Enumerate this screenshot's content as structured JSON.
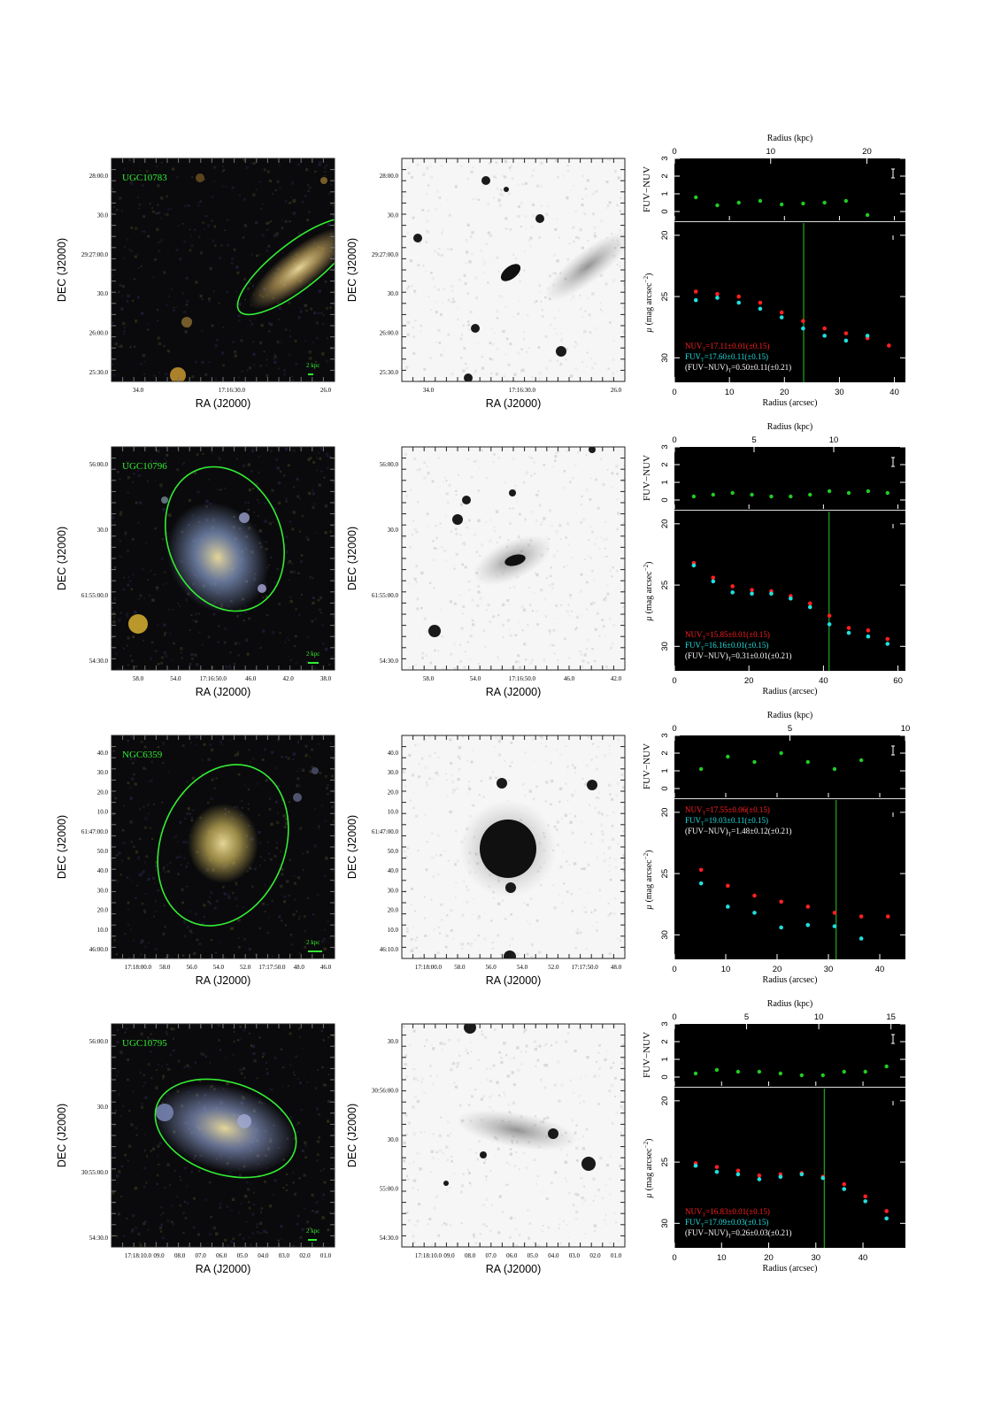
{
  "rows": [
    {
      "name": "UGC10783",
      "color": {
        "ra_ticks": [
          "34.0",
          "17:16:30.0",
          "26.0"
        ],
        "dec_ticks": [
          "28:00.0",
          "30.0",
          "29:27:00.0",
          "30.0",
          "26:00.0",
          "25:30.0"
        ],
        "scale": "2 kpc"
      },
      "gray": {
        "ra_ticks": [
          "34.0",
          "17:16:30.0",
          "26.0"
        ],
        "dec_ticks": [
          "28:00.0",
          "30.0",
          "29:27:00.0",
          "30.0",
          "26:00.0",
          "25:30.0"
        ]
      },
      "profile": {
        "kpc_ticks": [
          "0",
          "10",
          "20"
        ],
        "kpc_max": 24,
        "arcsec_ticks": [
          "0",
          "10",
          "20",
          "30",
          "40"
        ],
        "arcsec_max": 42,
        "color_ticks": [
          "0",
          "1",
          "2",
          "3"
        ],
        "mu_ticks": [
          "20",
          "25",
          "30"
        ],
        "mu_range": [
          19.0,
          32.0
        ],
        "vline": 23.5,
        "legend_pos": "bottom",
        "nuv_label": "NUV",
        "nuv_value": "=17.11±0.01(±0.15)",
        "fuv_label": "FUV",
        "fuv_value": "=17.60±0.11(±0.15)",
        "color_label": "(FUV−NUV)",
        "color_value": "=0.50±0.11(±0.21)",
        "nuv": [
          [
            3.9,
            24.6
          ],
          [
            7.8,
            24.8
          ],
          [
            11.7,
            25.0
          ],
          [
            15.6,
            25.5
          ],
          [
            19.5,
            26.3
          ],
          [
            23.4,
            27.0
          ],
          [
            27.3,
            27.6
          ],
          [
            31.2,
            28.0
          ],
          [
            35.1,
            28.4
          ],
          [
            39.0,
            29.0
          ]
        ],
        "fuv": [
          [
            3.9,
            25.3
          ],
          [
            7.8,
            25.1
          ],
          [
            11.7,
            25.5
          ],
          [
            15.6,
            26.0
          ],
          [
            19.5,
            26.7
          ],
          [
            23.4,
            27.6
          ],
          [
            27.3,
            28.2
          ],
          [
            31.2,
            28.6
          ],
          [
            35.1,
            28.2
          ]
        ],
        "fuv_nuv": [
          [
            3.9,
            0.8
          ],
          [
            7.8,
            0.35
          ],
          [
            11.7,
            0.5
          ],
          [
            15.6,
            0.6
          ],
          [
            19.5,
            0.4
          ],
          [
            23.4,
            0.45
          ],
          [
            27.3,
            0.5
          ],
          [
            31.2,
            0.6
          ],
          [
            35.1,
            -0.2
          ]
        ]
      }
    },
    {
      "name": "UGC10796",
      "color": {
        "ra_ticks": [
          "58.0",
          "54.0",
          "17:16:50.0",
          "46.0",
          "42.0",
          "38.0"
        ],
        "dec_ticks": [
          "56:00.0",
          "30.0",
          "61:55:00.0",
          "54:30.0"
        ],
        "scale": "2 kpc"
      },
      "gray": {
        "ra_ticks": [
          "58.0",
          "54.0",
          "17:16:50.0",
          "46.0",
          "42.0"
        ],
        "dec_ticks": [
          "56:00.0",
          "30.0",
          "61:55:00.0",
          "54:30.0"
        ]
      },
      "profile": {
        "kpc_ticks": [
          "0",
          "5",
          "10"
        ],
        "kpc_max": 14.5,
        "arcsec_ticks": [
          "0",
          "20",
          "40",
          "60"
        ],
        "arcsec_max": 62,
        "color_ticks": [
          "0",
          "1",
          "2",
          "3"
        ],
        "mu_ticks": [
          "20",
          "25",
          "30"
        ],
        "mu_range": [
          19.0,
          32.0
        ],
        "vline": 41.5,
        "legend_pos": "bottom",
        "nuv_label": "NUV",
        "nuv_value": "=15.85±0.01(±0.15)",
        "fuv_label": "FUV",
        "fuv_value": "=16.16±0.01(±0.15)",
        "color_label": "(FUV−NUV)",
        "color_value": "=0.31±0.01(±0.21)",
        "nuv": [
          [
            5.2,
            23.2
          ],
          [
            10.4,
            24.4
          ],
          [
            15.6,
            25.1
          ],
          [
            20.8,
            25.4
          ],
          [
            26.0,
            25.5
          ],
          [
            31.2,
            25.9
          ],
          [
            36.4,
            26.5
          ],
          [
            41.6,
            27.5
          ],
          [
            46.8,
            28.5
          ],
          [
            52.0,
            28.7
          ],
          [
            57.2,
            29.4
          ]
        ],
        "fuv": [
          [
            5.2,
            23.4
          ],
          [
            10.4,
            24.7
          ],
          [
            15.6,
            25.6
          ],
          [
            20.8,
            25.7
          ],
          [
            26.0,
            25.7
          ],
          [
            31.2,
            26.1
          ],
          [
            36.4,
            26.8
          ],
          [
            41.6,
            28.2
          ],
          [
            46.8,
            28.9
          ],
          [
            52.0,
            29.2
          ],
          [
            57.2,
            29.8
          ]
        ],
        "fuv_nuv": [
          [
            5.2,
            0.2
          ],
          [
            10.4,
            0.3
          ],
          [
            15.6,
            0.4
          ],
          [
            20.8,
            0.3
          ],
          [
            26.0,
            0.2
          ],
          [
            31.2,
            0.2
          ],
          [
            36.4,
            0.3
          ],
          [
            41.6,
            0.5
          ],
          [
            46.8,
            0.4
          ],
          [
            52.0,
            0.5
          ],
          [
            57.2,
            0.4
          ]
        ]
      }
    },
    {
      "name": "NGC6359",
      "color": {
        "ra_ticks": [
          "17:18:00.0",
          "58.0",
          "56.0",
          "54.0",
          "52.0",
          "17:17:50.0",
          "48.0",
          "46.0"
        ],
        "dec_ticks": [
          "40.0",
          "30.0",
          "20.0",
          "10.0",
          "61:47:00.0",
          "50.0",
          "40.0",
          "30.0",
          "20.0",
          "10.0",
          "46:00.0"
        ],
        "scale": "2 kpc"
      },
      "gray": {
        "ra_ticks": [
          "17:18:00.0",
          "58.0",
          "56.0",
          "54.0",
          "52.0",
          "17:17:50.0",
          "48.0"
        ],
        "dec_ticks": [
          "40.0",
          "30.0",
          "20.0",
          "10.0",
          "61:47:00.0",
          "50.0",
          "40.0",
          "30.0",
          "20.0",
          "10.0",
          "46:10.0"
        ]
      },
      "profile": {
        "kpc_ticks": [
          "0",
          "5",
          "10"
        ],
        "kpc_max": 10,
        "arcsec_ticks": [
          "0",
          "10",
          "20",
          "30",
          "40"
        ],
        "arcsec_max": 45,
        "color_ticks": [
          "0",
          "1",
          "2",
          "3"
        ],
        "mu_ticks": [
          "20",
          "25",
          "30"
        ],
        "mu_range": [
          19.0,
          32.0
        ],
        "vline": 31.5,
        "legend_pos": "top",
        "nuv_label": "NUV",
        "nuv_value": "=17.55±0.06(±0.15)",
        "fuv_label": "FUV",
        "fuv_value": "=19.03±0.11(±0.15)",
        "color_label": "(FUV−NUV)",
        "color_value": "=1.48±0.12(±0.21)",
        "nuv": [
          [
            5.2,
            24.7
          ],
          [
            10.4,
            26.0
          ],
          [
            15.6,
            26.8
          ],
          [
            20.8,
            27.3
          ],
          [
            26.0,
            27.7
          ],
          [
            31.2,
            28.2
          ],
          [
            36.4,
            28.5
          ],
          [
            41.6,
            28.5
          ]
        ],
        "fuv": [
          [
            5.2,
            25.8
          ],
          [
            10.4,
            27.7
          ],
          [
            15.6,
            28.2
          ],
          [
            20.8,
            29.4
          ],
          [
            26.0,
            29.2
          ],
          [
            31.2,
            29.3
          ],
          [
            36.4,
            30.3
          ]
        ],
        "fuv_nuv": [
          [
            5.2,
            1.1
          ],
          [
            10.4,
            1.8
          ],
          [
            15.6,
            1.5
          ],
          [
            20.8,
            2.0
          ],
          [
            26.0,
            1.5
          ],
          [
            31.2,
            1.1
          ],
          [
            36.4,
            1.6
          ]
        ]
      }
    },
    {
      "name": "UGC10795",
      "color": {
        "ra_ticks": [
          "17:18:10.0",
          "09.0",
          "08.0",
          "07.0",
          "06.0",
          "05.0",
          "04.0",
          "03.0",
          "02.0",
          "01.0"
        ],
        "dec_ticks": [
          "56:00.0",
          "30.0",
          "30:55:00.0",
          "54:30.0"
        ],
        "scale": "2 kpc"
      },
      "gray": {
        "ra_ticks": [
          "17:18:10.0",
          "09.0",
          "08.0",
          "07.0",
          "06.0",
          "05.0",
          "04.0",
          "03.0",
          "02.0",
          "01.0"
        ],
        "dec_ticks": [
          "30.0",
          "30:56:00.0",
          "30.0",
          "55:00.0",
          "54:30.0"
        ]
      },
      "profile": {
        "kpc_ticks": [
          "0",
          "5",
          "10",
          "15"
        ],
        "kpc_max": 16,
        "arcsec_ticks": [
          "0",
          "10",
          "20",
          "30",
          "40"
        ],
        "arcsec_max": 49,
        "color_ticks": [
          "0",
          "1",
          "2",
          "3"
        ],
        "mu_ticks": [
          "20",
          "25",
          "30"
        ],
        "mu_range": [
          19.0,
          32.0
        ],
        "vline": 31.8,
        "legend_pos": "bottom",
        "nuv_label": "NUV",
        "nuv_value": "=16.83±0.01(±0.15)",
        "fuv_label": "FUV",
        "fuv_value": "=17.09±0.03(±0.15)",
        "color_label": "(FUV−NUV)",
        "color_value": "=0.26±0.03(±0.21)",
        "nuv": [
          [
            4.5,
            25.1
          ],
          [
            9.0,
            25.4
          ],
          [
            13.5,
            25.7
          ],
          [
            18.0,
            26.1
          ],
          [
            22.5,
            26.0
          ],
          [
            27.0,
            25.9
          ],
          [
            31.5,
            26.2
          ],
          [
            36.0,
            26.8
          ],
          [
            40.5,
            27.8
          ],
          [
            45.0,
            29.0
          ]
        ],
        "fuv": [
          [
            4.5,
            25.3
          ],
          [
            9.0,
            25.8
          ],
          [
            13.5,
            26.0
          ],
          [
            18.0,
            26.4
          ],
          [
            22.5,
            26.2
          ],
          [
            27.0,
            26.0
          ],
          [
            31.5,
            26.3
          ],
          [
            36.0,
            27.2
          ],
          [
            40.5,
            28.2
          ],
          [
            45.0,
            29.6
          ]
        ],
        "fuv_nuv": [
          [
            4.5,
            0.2
          ],
          [
            9.0,
            0.4
          ],
          [
            13.5,
            0.3
          ],
          [
            18.0,
            0.3
          ],
          [
            22.5,
            0.2
          ],
          [
            27.0,
            0.1
          ],
          [
            31.5,
            0.1
          ],
          [
            36.0,
            0.3
          ],
          [
            40.5,
            0.3
          ],
          [
            45.0,
            0.6
          ]
        ]
      }
    }
  ],
  "labels": {
    "ra": "RA (J2000)",
    "dec": "DEC (J2000)",
    "radius_kpc": "Radius (kpc)",
    "radius_arcsec": "Radius (arcsec)",
    "color_axis": "FUV−NUV",
    "mu_axis_prefix": "μ",
    "mu_axis_rest": "(mag arcsec",
    "mu_axis_exp": "−2",
    "mu_axis_close": ")",
    "subscript_T": "T"
  },
  "colors": {
    "nuv": "#ff2020",
    "fuv": "#22dede",
    "fuv_nuv": "#22cc22",
    "ellipse": "#33ee33",
    "galaxy_name": "#33ee33",
    "vline": "#1f9a1f"
  }
}
